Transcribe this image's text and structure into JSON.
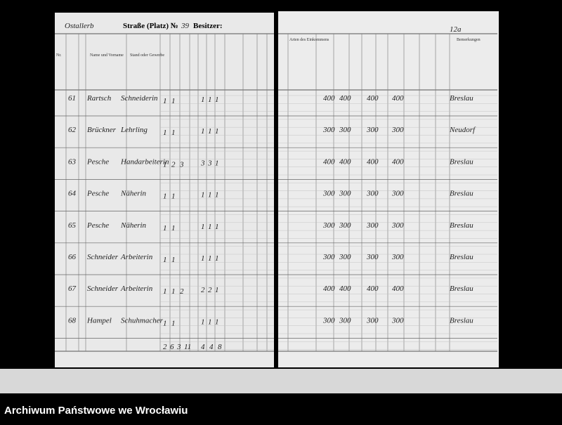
{
  "header": {
    "left_mark": "Ostallerb",
    "street_label": "Straße (Platz) №",
    "street_number": "39",
    "owner_label": "Besitzer:",
    "page_number": "12a"
  },
  "columns_left": [
    "Nr.",
    "Name und Vorname",
    "Stand oder Gewerbe"
  ],
  "columns_right": [
    "Arten des Einkommens",
    "Bemerkungen"
  ],
  "rows": [
    {
      "nr": "61",
      "name": "Rartsch",
      "occupation": "Schneiderin",
      "counts": [
        "1",
        "1"
      ],
      "marks": [
        "1",
        "1",
        "1"
      ],
      "amounts": [
        "400",
        "400",
        "400",
        "400"
      ],
      "remark": "Breslau"
    },
    {
      "nr": "62",
      "name": "Brückner",
      "occupation": "Lehrling",
      "counts": [
        "1",
        "1"
      ],
      "marks": [
        "1",
        "1",
        "1"
      ],
      "amounts": [
        "300",
        "300",
        "300",
        "300"
      ],
      "remark": "Neudorf"
    },
    {
      "nr": "63",
      "name": "Pesche",
      "occupation": "Handarbeiterin",
      "counts": [
        "1",
        "2",
        "3"
      ],
      "marks": [
        "3",
        "3",
        "1"
      ],
      "amounts": [
        "400",
        "400",
        "400",
        "400"
      ],
      "remark": "Breslau"
    },
    {
      "nr": "64",
      "name": "Pesche",
      "occupation": "Näherin",
      "counts": [
        "1",
        "1"
      ],
      "marks": [
        "1",
        "1",
        "1"
      ],
      "amounts": [
        "300",
        "300",
        "300",
        "300"
      ],
      "remark": "Breslau"
    },
    {
      "nr": "65",
      "name": "Pesche",
      "occupation": "Näherin",
      "counts": [
        "1",
        "1"
      ],
      "marks": [
        "1",
        "1",
        "1"
      ],
      "amounts": [
        "300",
        "300",
        "300",
        "300"
      ],
      "remark": "Breslau"
    },
    {
      "nr": "66",
      "name": "Schneider",
      "occupation": "Arbeiterin",
      "counts": [
        "1",
        "1"
      ],
      "marks": [
        "1",
        "1",
        "1"
      ],
      "amounts": [
        "300",
        "300",
        "300",
        "300"
      ],
      "remark": "Breslau"
    },
    {
      "nr": "67",
      "name": "Schneider",
      "occupation": "Arbeiterin",
      "counts": [
        "1",
        "1",
        "2"
      ],
      "marks": [
        "2",
        "2",
        "1"
      ],
      "amounts": [
        "400",
        "400",
        "400",
        "400"
      ],
      "remark": "Breslau"
    },
    {
      "nr": "68",
      "name": "Hampel",
      "occupation": "Schuhmacher",
      "counts": [
        "1",
        "1"
      ],
      "marks": [
        "1",
        "1",
        "1"
      ],
      "amounts": [
        "300",
        "300",
        "300",
        "300"
      ],
      "remark": "Breslau"
    }
  ],
  "totals": [
    "2",
    "6",
    "3",
    "11",
    "4",
    "4",
    "8"
  ],
  "footer": "Archiwum Państwowe we Wrocławiu"
}
